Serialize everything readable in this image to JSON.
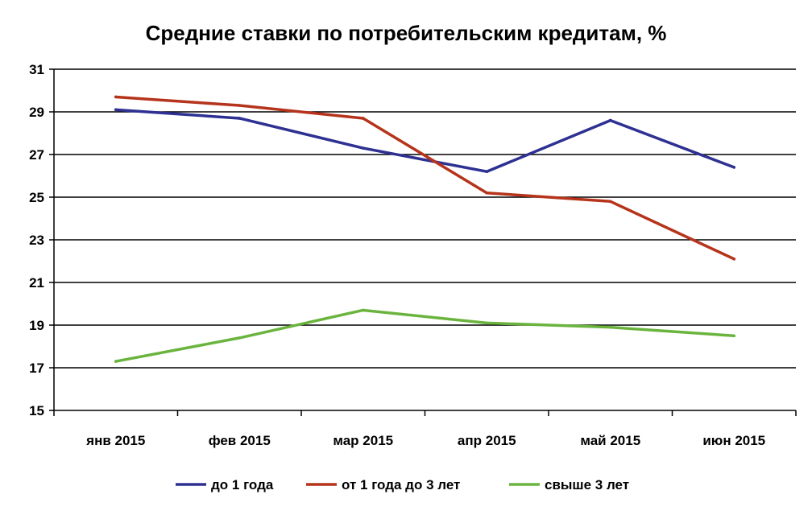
{
  "chart_data": {
    "type": "line",
    "title": "Средние ставки по потребительским кредитам, %",
    "categories": [
      "янв 2015",
      "фев 2015",
      "мар 2015",
      "апр 2015",
      "май 2015",
      "июн 2015"
    ],
    "ylim": [
      15,
      31
    ],
    "yticks": [
      "15",
      "17",
      "19",
      "21",
      "23",
      "25",
      "27",
      "29",
      "31"
    ],
    "grid": true,
    "legend_position": "bottom",
    "series": [
      {
        "name": "до 1 года",
        "color": "#2e3192",
        "values": [
          29.1,
          28.7,
          27.3,
          26.2,
          28.6,
          26.4
        ]
      },
      {
        "name": "от 1 года до 3 лет",
        "color": "#b5341b",
        "values": [
          29.7,
          29.3,
          28.7,
          25.2,
          24.8,
          22.1
        ]
      },
      {
        "name": "свыше 3 лет",
        "color": "#6ab43e",
        "values": [
          17.3,
          18.4,
          19.7,
          19.1,
          18.9,
          18.5
        ]
      }
    ]
  }
}
